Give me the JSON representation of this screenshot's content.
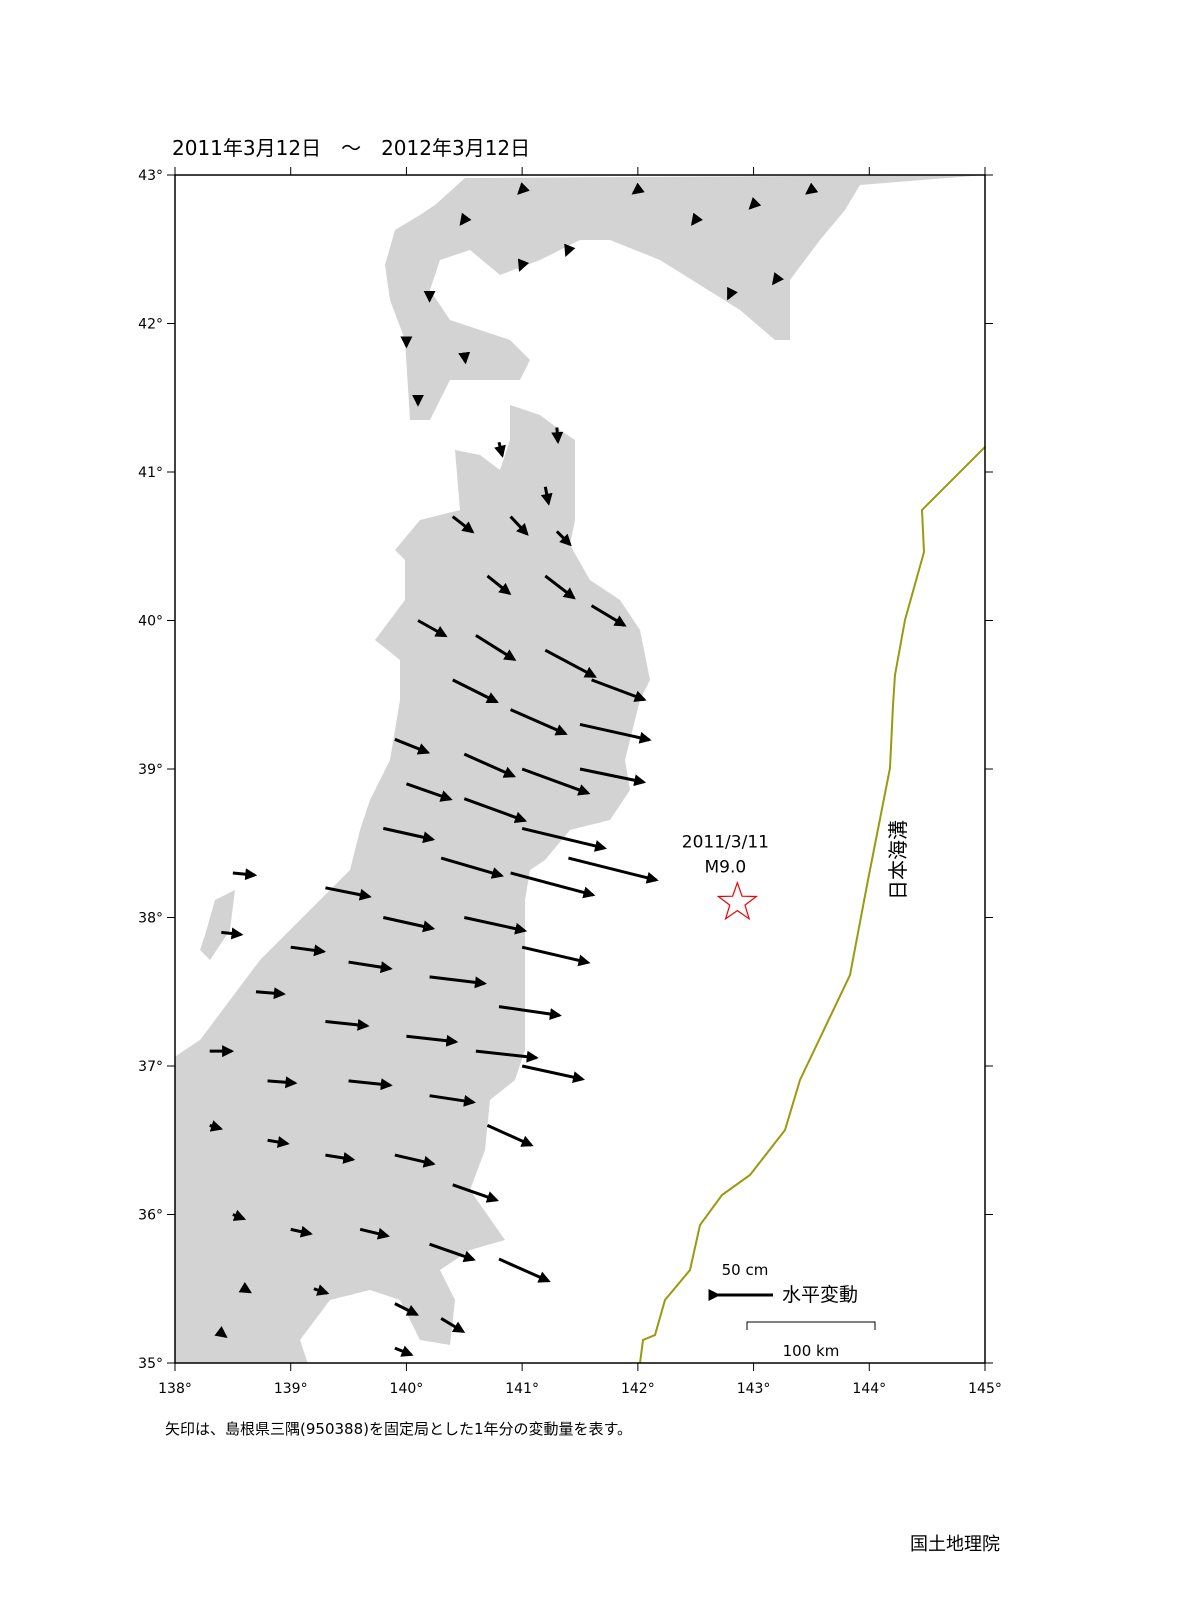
{
  "title": "2011年3月12日　～　2012年3月12日",
  "map": {
    "xlim": [
      138,
      145
    ],
    "ylim": [
      35,
      43
    ],
    "xticks": [
      {
        "value": 138,
        "label": "138°"
      },
      {
        "value": 139,
        "label": "139°"
      },
      {
        "value": 140,
        "label": "140°"
      },
      {
        "value": 141,
        "label": "141°"
      },
      {
        "value": 142,
        "label": "142°"
      },
      {
        "value": 143,
        "label": "143°"
      },
      {
        "value": 144,
        "label": "144°"
      },
      {
        "value": 145,
        "label": "145°"
      }
    ],
    "yticks": [
      {
        "value": 35,
        "label": "35°"
      },
      {
        "value": 36,
        "label": "36°"
      },
      {
        "value": 37,
        "label": "37°"
      },
      {
        "value": 38,
        "label": "38°"
      },
      {
        "value": 39,
        "label": "39°"
      },
      {
        "value": 40,
        "label": "40°"
      },
      {
        "value": 41,
        "label": "41°"
      },
      {
        "value": 42,
        "label": "42°"
      },
      {
        "value": 43,
        "label": "43°"
      }
    ]
  },
  "stations": [
    [
      140.2,
      42.2,
      0,
      -6
    ],
    [
      140.5,
      42.7,
      -3,
      -4
    ],
    [
      141.0,
      42.9,
      -3,
      -3
    ],
    [
      141.4,
      42.5,
      -2,
      -5
    ],
    [
      142.0,
      42.9,
      -4,
      -3
    ],
    [
      142.5,
      42.7,
      -3,
      -4
    ],
    [
      143.0,
      42.8,
      -3,
      -3
    ],
    [
      143.5,
      42.9,
      -4,
      -3
    ],
    [
      142.8,
      42.2,
      -2,
      -4
    ],
    [
      140.0,
      41.9,
      0,
      -7
    ],
    [
      140.5,
      41.8,
      1,
      -8
    ],
    [
      140.1,
      41.5,
      0,
      -6
    ],
    [
      141.0,
      42.4,
      -2,
      -5
    ],
    [
      143.2,
      42.3,
      -3,
      -4
    ],
    [
      140.8,
      41.2,
      3,
      -12
    ],
    [
      141.3,
      41.3,
      1,
      -13
    ],
    [
      141.2,
      40.9,
      3,
      -15
    ],
    [
      140.4,
      40.7,
      18,
      -14
    ],
    [
      140.9,
      40.7,
      15,
      -16
    ],
    [
      141.3,
      40.6,
      12,
      -12
    ],
    [
      140.7,
      40.3,
      20,
      -16
    ],
    [
      141.2,
      40.3,
      26,
      -20
    ],
    [
      141.6,
      40.1,
      30,
      -18
    ],
    [
      140.1,
      40.0,
      25,
      -14
    ],
    [
      140.6,
      39.9,
      35,
      -22
    ],
    [
      141.2,
      39.8,
      45,
      -24
    ],
    [
      141.6,
      39.6,
      48,
      -18
    ],
    [
      140.4,
      39.6,
      40,
      -20
    ],
    [
      140.9,
      39.4,
      50,
      -22
    ],
    [
      141.5,
      39.3,
      63,
      -14
    ],
    [
      140.5,
      39.1,
      45,
      -20
    ],
    [
      141.0,
      39.0,
      60,
      -22
    ],
    [
      141.5,
      39.0,
      58,
      -12
    ],
    [
      139.9,
      39.2,
      30,
      -12
    ],
    [
      140.0,
      38.9,
      40,
      -14
    ],
    [
      140.5,
      38.8,
      55,
      -20
    ],
    [
      141.0,
      38.6,
      75,
      -18
    ],
    [
      141.4,
      38.4,
      80,
      -20
    ],
    [
      139.8,
      38.6,
      45,
      -10
    ],
    [
      140.3,
      38.4,
      55,
      -16
    ],
    [
      140.9,
      38.3,
      75,
      -20
    ],
    [
      139.3,
      38.2,
      40,
      -8
    ],
    [
      139.8,
      38.0,
      45,
      -10
    ],
    [
      140.5,
      38.0,
      55,
      -12
    ],
    [
      141.0,
      37.8,
      60,
      -14
    ],
    [
      139.0,
      37.8,
      30,
      -4
    ],
    [
      139.5,
      37.7,
      38,
      -6
    ],
    [
      140.2,
      37.6,
      50,
      -6
    ],
    [
      140.8,
      37.4,
      55,
      -8
    ],
    [
      138.7,
      37.5,
      25,
      -2
    ],
    [
      139.3,
      37.3,
      38,
      -4
    ],
    [
      140.0,
      37.2,
      45,
      -5
    ],
    [
      140.6,
      37.1,
      55,
      -6
    ],
    [
      141.0,
      37.0,
      55,
      -12
    ],
    [
      138.3,
      37.1,
      20,
      0
    ],
    [
      138.8,
      36.9,
      25,
      -2
    ],
    [
      139.5,
      36.9,
      38,
      -4
    ],
    [
      140.2,
      36.8,
      40,
      -6
    ],
    [
      140.7,
      36.6,
      40,
      -18
    ],
    [
      138.3,
      36.6,
      10,
      -3
    ],
    [
      138.8,
      36.5,
      18,
      -3
    ],
    [
      139.3,
      36.4,
      25,
      -4
    ],
    [
      139.9,
      36.4,
      35,
      -8
    ],
    [
      140.4,
      36.2,
      40,
      -14
    ],
    [
      138.5,
      36.0,
      10,
      -4
    ],
    [
      139.0,
      35.9,
      18,
      -4
    ],
    [
      139.6,
      35.9,
      25,
      -6
    ],
    [
      140.2,
      35.8,
      40,
      -14
    ],
    [
      140.8,
      35.7,
      45,
      -20
    ],
    [
      138.6,
      35.5,
      5,
      -3
    ],
    [
      139.2,
      35.5,
      12,
      -4
    ],
    [
      139.9,
      35.4,
      20,
      -10
    ],
    [
      140.3,
      35.3,
      20,
      -12
    ],
    [
      138.4,
      35.2,
      4,
      -3
    ],
    [
      139.9,
      35.1,
      15,
      -6
    ],
    [
      138.5,
      38.3,
      20,
      -2
    ],
    [
      138.4,
      37.9,
      18,
      -2
    ]
  ],
  "epicenter": {
    "lon": 142.86,
    "lat": 38.1,
    "date": "2011/3/11",
    "magnitude": "M9.0"
  },
  "trench_label": "日本海溝",
  "legend": {
    "length": 50,
    "length_label": "50 cm",
    "label": "水平変動",
    "scale_label": "100 km"
  },
  "caption": "矢印は、島根県三隅(950388)を固定局とした1年分の変動量を表す。",
  "credit": "国土地理院"
}
